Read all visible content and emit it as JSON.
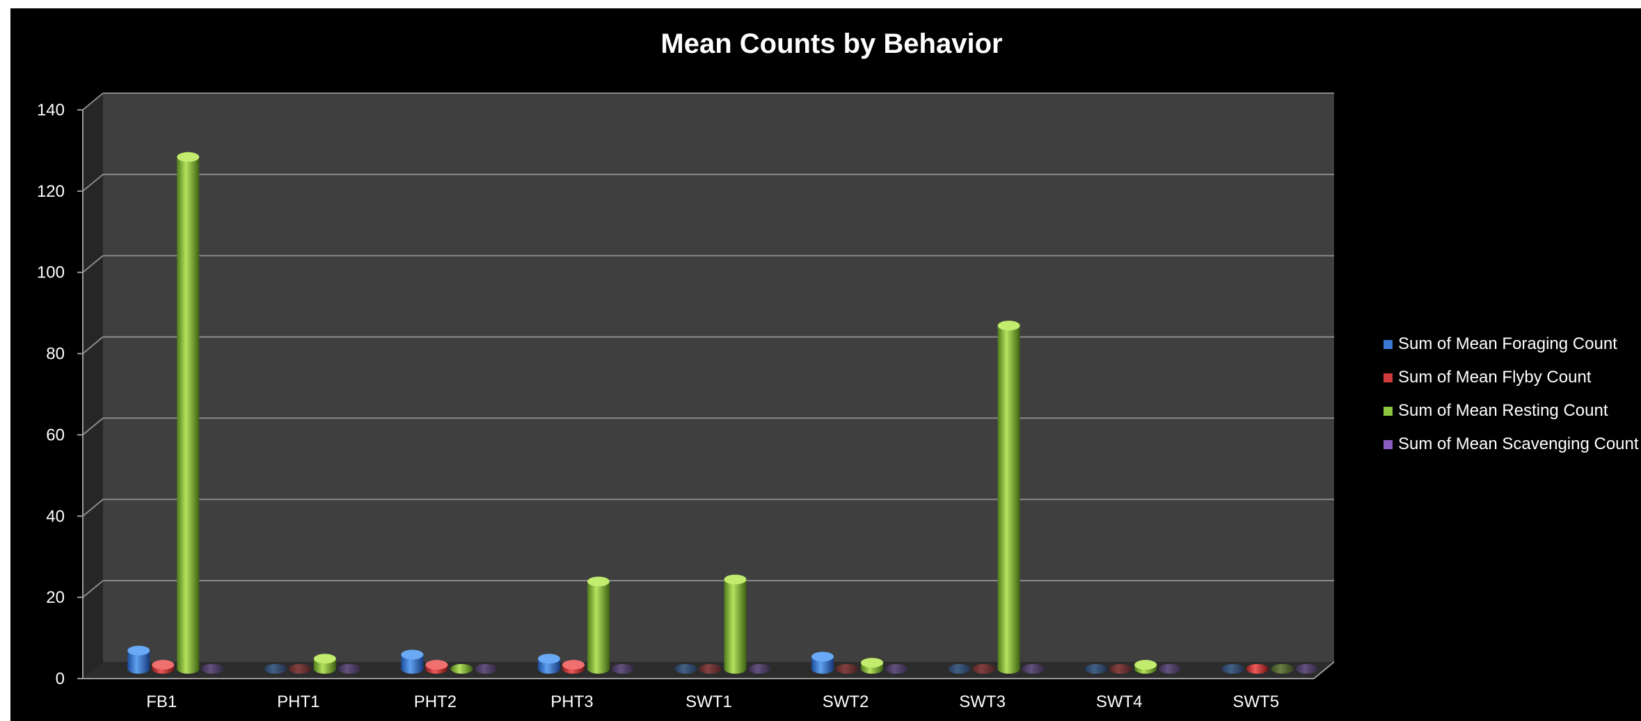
{
  "chart_data": {
    "type": "bar",
    "title": "Mean Counts by Behavior",
    "xlabel": "",
    "ylabel": "",
    "ylim": [
      0,
      140
    ],
    "yticks": [
      0,
      20,
      40,
      60,
      80,
      100,
      120,
      140
    ],
    "grid": true,
    "legend_position": "right",
    "categories": [
      "FB1",
      "PHT1",
      "PHT2",
      "PHT3",
      "SWT1",
      "SWT2",
      "SWT3",
      "SWT4",
      "SWT5"
    ],
    "series": [
      {
        "name": "Sum of Mean Foraging Count",
        "color": "#3a78d4",
        "values": [
          4.5,
          0,
          3.5,
          2.5,
          0,
          3,
          0,
          0,
          0
        ]
      },
      {
        "name": "Sum of Mean Flyby Count",
        "color": "#d03a3a",
        "values": [
          1,
          0,
          1,
          1,
          0,
          0,
          0,
          0,
          0.3
        ]
      },
      {
        "name": "Sum of Mean Resting Count",
        "color": "#8cc63f",
        "values": [
          126,
          2.5,
          0.5,
          21.5,
          22,
          1.5,
          84.5,
          1,
          0
        ]
      },
      {
        "name": "Sum of Mean Scavenging Count",
        "color": "#8a5cc2",
        "values": [
          0,
          0,
          0,
          0,
          0,
          0,
          0,
          0,
          0
        ]
      }
    ]
  }
}
